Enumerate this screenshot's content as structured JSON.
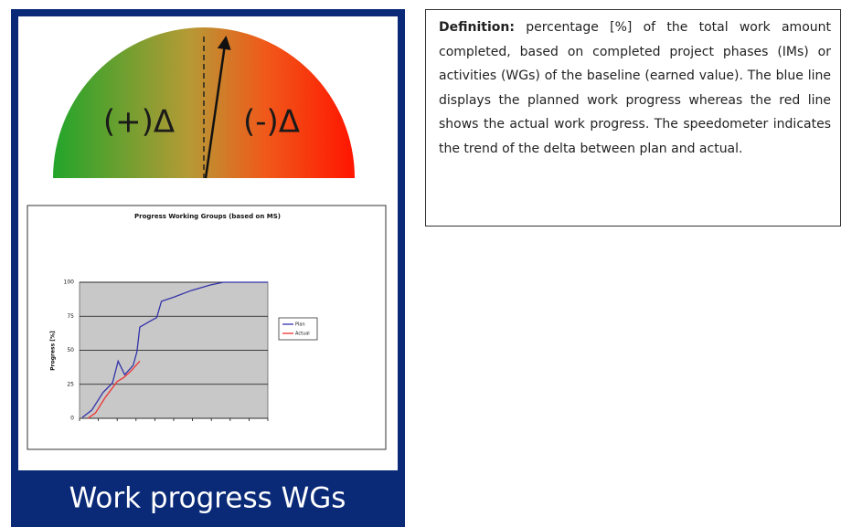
{
  "gauge": {
    "plus_label": "(+)Δ",
    "minus_label": "(-)Δ"
  },
  "chart_data": {
    "type": "line",
    "title": "Progress Working Groups (based on MS)",
    "y_label": "Progress [%]",
    "xlim": [
      0,
      20
    ],
    "xticks": [
      0,
      2,
      4,
      6,
      8,
      10,
      12,
      14,
      16,
      18,
      20
    ],
    "ylim": [
      0,
      100
    ],
    "yticks": [
      0,
      25,
      50,
      75,
      100
    ],
    "grid": true,
    "legend": "right",
    "series": [
      {
        "name": "Plan",
        "color": "#3333aa",
        "x": [
          0.3,
          1.3,
          2.5,
          3.5,
          4.1,
          4.8,
          5.7,
          6.1,
          6.4,
          7.4,
          8.2,
          8.7,
          10,
          11.9,
          13.9,
          15.3,
          20
        ],
        "values": [
          0.7,
          6,
          19,
          26,
          42,
          32,
          39,
          49,
          67,
          71,
          74,
          86,
          89,
          94,
          98,
          100,
          100
        ]
      },
      {
        "name": "Actual",
        "color": "#ee3333",
        "x": [
          0.9,
          1.7,
          2.7,
          4,
          4.7,
          5.5,
          6.4
        ],
        "values": [
          0,
          4,
          15,
          27,
          30,
          35,
          42
        ]
      }
    ]
  },
  "caption": "Work progress WGs",
  "definition": {
    "term": "Definition:",
    "text": "percentage [%] of the total work amount completed, based on completed project phases (IMs) or activities (WGs) of the baseline (earned value). The blue line displays the planned work progress whereas the red line shows the actual work progress. The speedometer indicates the trend of the delta between plan and actual."
  }
}
